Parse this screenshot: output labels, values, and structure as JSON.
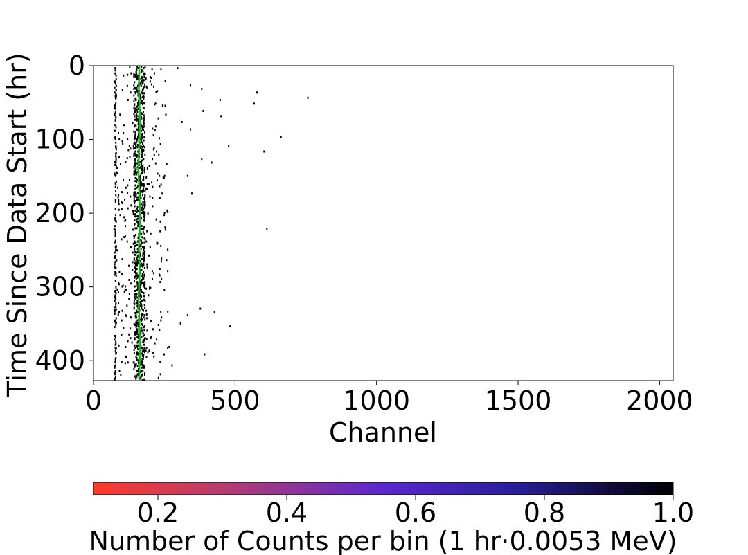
{
  "chart_data": {
    "type": "heatmap",
    "xlabel": "Channel",
    "ylabel": "Time Since Data Start (hr)",
    "xlim": [
      0,
      2048
    ],
    "ylim": [
      427,
      0
    ],
    "y_axis_inverted": true,
    "x_ticks": [
      0,
      500,
      1000,
      1500,
      2000
    ],
    "x_tick_labels": [
      "0",
      "500",
      "1000",
      "1500",
      "2000"
    ],
    "y_ticks": [
      0,
      100,
      200,
      300,
      400
    ],
    "y_tick_labels": [
      "0",
      "100",
      "200",
      "300",
      "400"
    ],
    "background_color": "#ffffff",
    "point_color": "#000000",
    "dense_band": {
      "channel_range": [
        70,
        290
      ],
      "peak_channel": 160,
      "description_values": {
        "density_high_channels": [
          140,
          180
        ]
      }
    },
    "sparse_points": [
      {
        "x": 295,
        "y": 2
      },
      {
        "x": 340,
        "y": 25
      },
      {
        "x": 380,
        "y": 30
      },
      {
        "x": 445,
        "y": 45
      },
      {
        "x": 575,
        "y": 35
      },
      {
        "x": 565,
        "y": 50
      },
      {
        "x": 755,
        "y": 42
      },
      {
        "x": 385,
        "y": 60
      },
      {
        "x": 448,
        "y": 67
      },
      {
        "x": 310,
        "y": 75
      },
      {
        "x": 340,
        "y": 85
      },
      {
        "x": 660,
        "y": 95
      },
      {
        "x": 475,
        "y": 108
      },
      {
        "x": 600,
        "y": 115
      },
      {
        "x": 380,
        "y": 125
      },
      {
        "x": 415,
        "y": 130
      },
      {
        "x": 330,
        "y": 148
      },
      {
        "x": 345,
        "y": 172
      },
      {
        "x": 610,
        "y": 220
      },
      {
        "x": 375,
        "y": 328
      },
      {
        "x": 425,
        "y": 333
      },
      {
        "x": 330,
        "y": 337
      },
      {
        "x": 480,
        "y": 352
      },
      {
        "x": 305,
        "y": 348
      },
      {
        "x": 390,
        "y": 390
      },
      {
        "x": 265,
        "y": 380
      },
      {
        "x": 275,
        "y": 405
      }
    ],
    "fit_line": {
      "color": "#00c800",
      "x": [
        162,
        160,
        164,
        162,
        158,
        162,
        165,
        160,
        163,
        159,
        162,
        164,
        161
      ],
      "y": [
        0,
        35,
        70,
        105,
        140,
        175,
        210,
        245,
        280,
        315,
        350,
        385,
        425
      ]
    },
    "colorbar": {
      "label": "Number of Counts per bin (1 hr·0.0053 MeV)",
      "range": [
        0.1,
        1.0
      ],
      "ticks": [
        0.2,
        0.4,
        0.6,
        0.8,
        1.0
      ],
      "tick_labels": [
        "0.2",
        "0.4",
        "0.6",
        "0.8",
        "1.0"
      ],
      "gradient_stops": [
        {
          "value": 0.1,
          "color": "#ff3a2a"
        },
        {
          "value": 0.3,
          "color": "#b63d6f"
        },
        {
          "value": 0.55,
          "color": "#5a28d0"
        },
        {
          "value": 0.75,
          "color": "#2a1f9a"
        },
        {
          "value": 1.0,
          "color": "#000000"
        }
      ]
    }
  }
}
